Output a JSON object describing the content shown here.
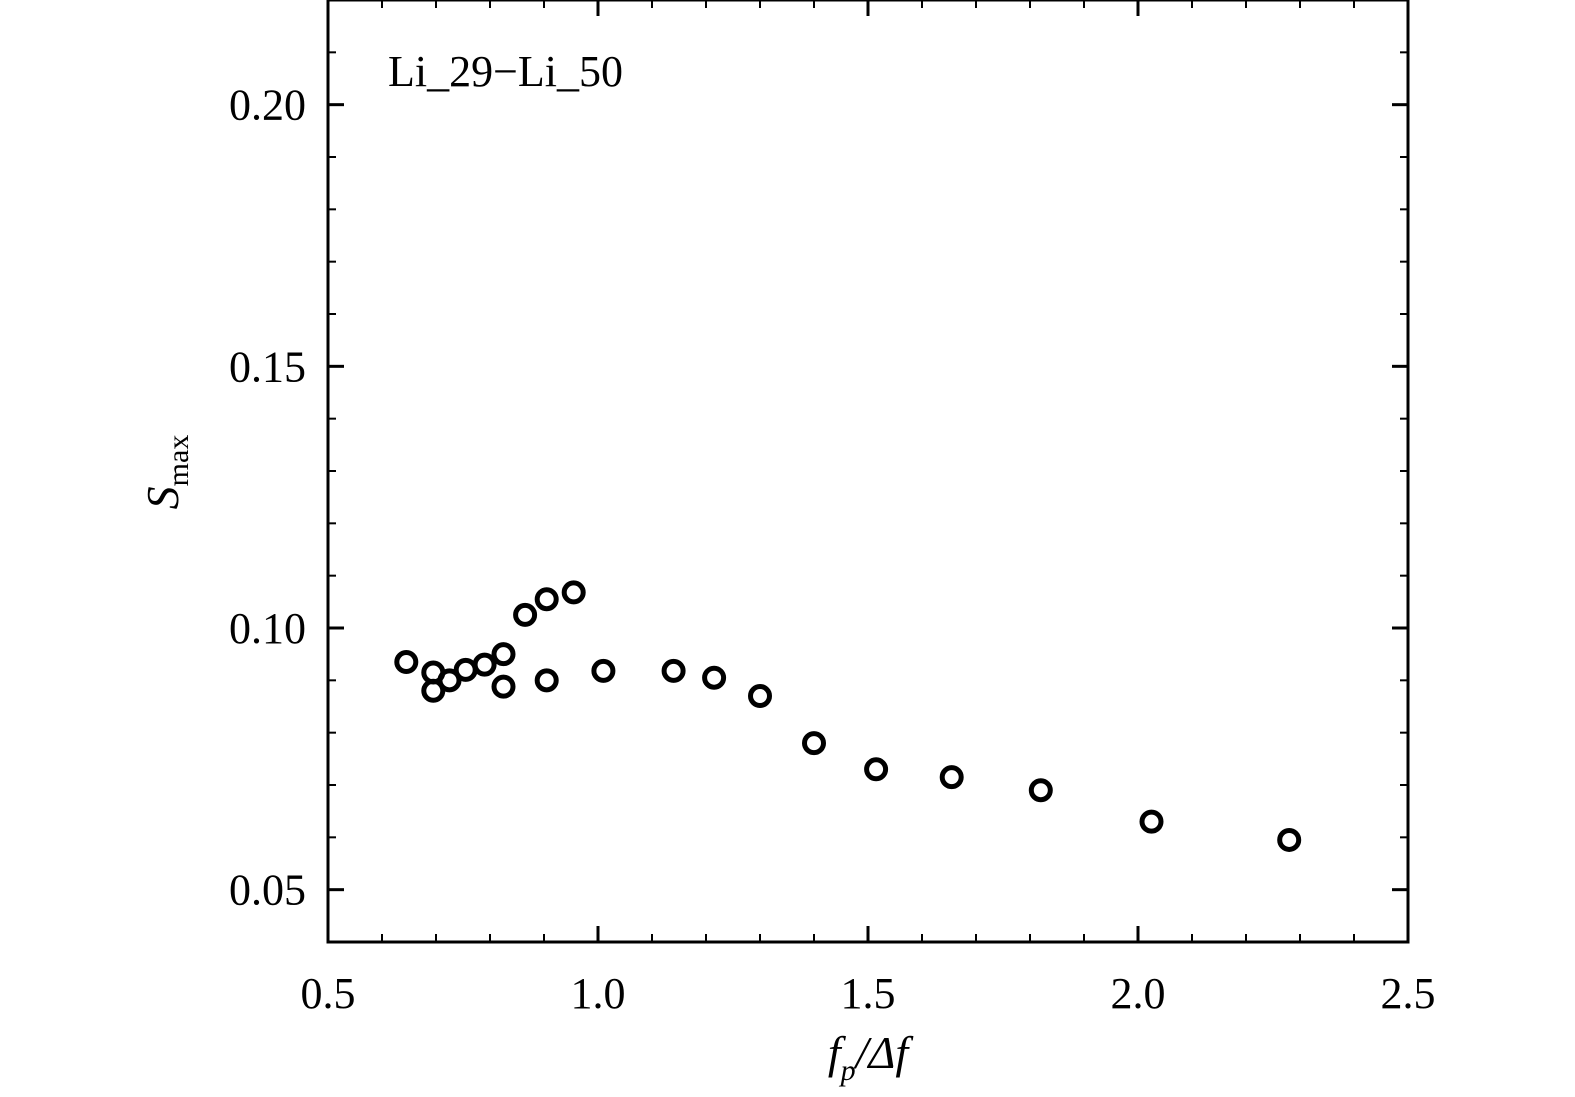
{
  "chart_data": {
    "type": "scatter",
    "annotation": "Li_29−Li_50",
    "xlabel": {
      "main": "f",
      "sub": "p",
      "rest": "/Δf"
    },
    "ylabel": {
      "main": "S",
      "sub": "max"
    },
    "xlim": [
      0.5,
      2.5
    ],
    "ylim": [
      0.04,
      0.22
    ],
    "xticks": [
      {
        "value": 0.5,
        "label": "0.5"
      },
      {
        "value": 1.0,
        "label": "1.0"
      },
      {
        "value": 1.5,
        "label": "1.5"
      },
      {
        "value": 2.0,
        "label": "2.0"
      },
      {
        "value": 2.5,
        "label": "2.5"
      }
    ],
    "yticks": [
      {
        "value": 0.05,
        "label": "0.05"
      },
      {
        "value": 0.1,
        "label": "0.10"
      },
      {
        "value": 0.15,
        "label": "0.15"
      },
      {
        "value": 0.2,
        "label": "0.20"
      }
    ],
    "grid": false,
    "marker": "open-circle",
    "points": [
      {
        "x": 0.645,
        "y": 0.0935
      },
      {
        "x": 0.695,
        "y": 0.0915
      },
      {
        "x": 0.695,
        "y": 0.088
      },
      {
        "x": 0.725,
        "y": 0.09
      },
      {
        "x": 0.755,
        "y": 0.092
      },
      {
        "x": 0.79,
        "y": 0.093
      },
      {
        "x": 0.825,
        "y": 0.095
      },
      {
        "x": 0.825,
        "y": 0.0888
      },
      {
        "x": 0.865,
        "y": 0.1025
      },
      {
        "x": 0.905,
        "y": 0.1055
      },
      {
        "x": 0.905,
        "y": 0.09
      },
      {
        "x": 0.955,
        "y": 0.1068
      },
      {
        "x": 1.01,
        "y": 0.0918
      },
      {
        "x": 1.14,
        "y": 0.0918
      },
      {
        "x": 1.215,
        "y": 0.0905
      },
      {
        "x": 1.3,
        "y": 0.087
      },
      {
        "x": 1.4,
        "y": 0.078
      },
      {
        "x": 1.515,
        "y": 0.073
      },
      {
        "x": 1.655,
        "y": 0.0715
      },
      {
        "x": 1.82,
        "y": 0.069
      },
      {
        "x": 2.025,
        "y": 0.063
      },
      {
        "x": 2.28,
        "y": 0.0595
      }
    ]
  }
}
